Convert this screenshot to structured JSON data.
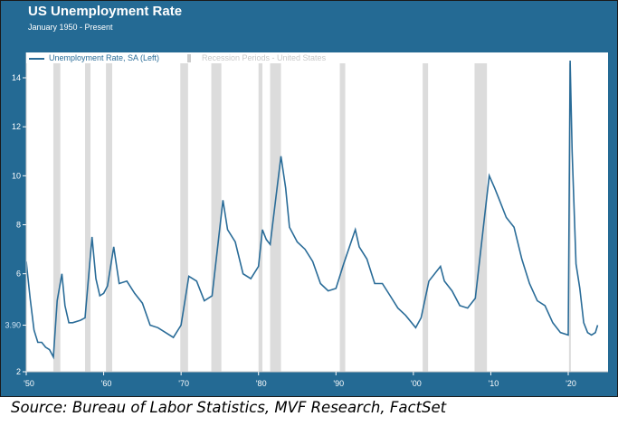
{
  "chart_data": {
    "type": "line",
    "title": "US Unemployment Rate",
    "subtitle": "January 1950 - Present",
    "source": "Source: Bureau of Labor Statistics, MVF Research, FactSet",
    "legend": {
      "placement": "top-left",
      "entries": [
        "Unemployment Rate, SA (Left)",
        "Recession Periods - United States"
      ]
    },
    "colors": {
      "line": "#2a6c98",
      "recession": "#dcdcdc",
      "background": "#246a94"
    },
    "xlim": [
      1950,
      2025
    ],
    "ylim": [
      2,
      15
    ],
    "grid": false,
    "x_ticks": [
      {
        "value": 1950,
        "label": "'50"
      },
      {
        "value": 1960,
        "label": "'60"
      },
      {
        "value": 1970,
        "label": "'70"
      },
      {
        "value": 1980,
        "label": "'80"
      },
      {
        "value": 1990,
        "label": "'90"
      },
      {
        "value": 2000,
        "label": "'00"
      },
      {
        "value": 2010,
        "label": "'10"
      },
      {
        "value": 2020,
        "label": "'20"
      }
    ],
    "y_ticks": [
      {
        "value": 2,
        "label": "2"
      },
      {
        "value": 3.9,
        "label": "3.90"
      },
      {
        "value": 6,
        "label": "6"
      },
      {
        "value": 8,
        "label": "8"
      },
      {
        "value": 10,
        "label": "10"
      },
      {
        "value": 12,
        "label": "12"
      },
      {
        "value": 14,
        "label": "14"
      }
    ],
    "recessions": [
      [
        1953.5,
        1954.4
      ],
      [
        1957.6,
        1958.3
      ],
      [
        1960.3,
        1961.1
      ],
      [
        1969.9,
        1970.9
      ],
      [
        1973.9,
        1975.2
      ],
      [
        1980.0,
        1980.5
      ],
      [
        1981.5,
        1982.9
      ],
      [
        1990.5,
        1991.2
      ],
      [
        2001.2,
        2001.9
      ],
      [
        2007.9,
        2009.5
      ],
      [
        2020.1,
        2020.3
      ]
    ],
    "series": [
      {
        "name": "Unemployment Rate, SA (Left)",
        "x": [
          1950.0,
          1950.5,
          1951.0,
          1951.5,
          1952.0,
          1952.5,
          1953.0,
          1953.5,
          1954.0,
          1954.6,
          1955.0,
          1955.5,
          1956.0,
          1957.0,
          1957.6,
          1958.5,
          1959.0,
          1959.5,
          1960.0,
          1960.5,
          1961.3,
          1962.0,
          1963.0,
          1964.0,
          1965.0,
          1966.0,
          1967.0,
          1968.0,
          1969.0,
          1970.0,
          1971.0,
          1972.0,
          1973.0,
          1974.0,
          1975.4,
          1976.0,
          1977.0,
          1978.0,
          1979.0,
          1980.0,
          1980.5,
          1981.0,
          1981.5,
          1982.9,
          1983.5,
          1984.0,
          1985.0,
          1986.0,
          1987.0,
          1988.0,
          1989.0,
          1990.0,
          1991.0,
          1992.5,
          1993.0,
          1994.0,
          1995.0,
          1996.0,
          1997.0,
          1998.0,
          1999.0,
          2000.3,
          2001.0,
          2002.0,
          2003.5,
          2004.0,
          2005.0,
          2006.0,
          2007.0,
          2008.0,
          2009.0,
          2009.8,
          2010.5,
          2011.0,
          2012.0,
          2013.0,
          2014.0,
          2015.0,
          2016.0,
          2017.0,
          2018.0,
          2019.0,
          2020.0,
          2020.25,
          2020.5,
          2021.0,
          2021.5,
          2022.0,
          2022.5,
          2023.0,
          2023.5,
          2023.8
        ],
        "y": [
          6.5,
          5.0,
          3.7,
          3.2,
          3.2,
          3.0,
          2.9,
          2.6,
          4.9,
          6.0,
          4.7,
          4.0,
          4.0,
          4.1,
          4.2,
          7.5,
          5.8,
          5.1,
          5.2,
          5.5,
          7.1,
          5.6,
          5.7,
          5.2,
          4.8,
          3.9,
          3.8,
          3.6,
          3.4,
          3.9,
          5.9,
          5.7,
          4.9,
          5.1,
          9.0,
          7.8,
          7.3,
          6.0,
          5.8,
          6.3,
          7.8,
          7.4,
          7.2,
          10.8,
          9.5,
          7.9,
          7.3,
          7.0,
          6.5,
          5.6,
          5.3,
          5.4,
          6.4,
          7.8,
          7.1,
          6.6,
          5.6,
          5.6,
          5.1,
          4.6,
          4.3,
          3.8,
          4.2,
          5.7,
          6.3,
          5.7,
          5.3,
          4.7,
          4.6,
          5.0,
          7.8,
          10.0,
          9.5,
          9.1,
          8.3,
          7.9,
          6.6,
          5.6,
          4.9,
          4.7,
          4.0,
          3.6,
          3.5,
          14.7,
          11.0,
          6.4,
          5.4,
          4.0,
          3.6,
          3.5,
          3.6,
          3.9
        ]
      }
    ]
  }
}
